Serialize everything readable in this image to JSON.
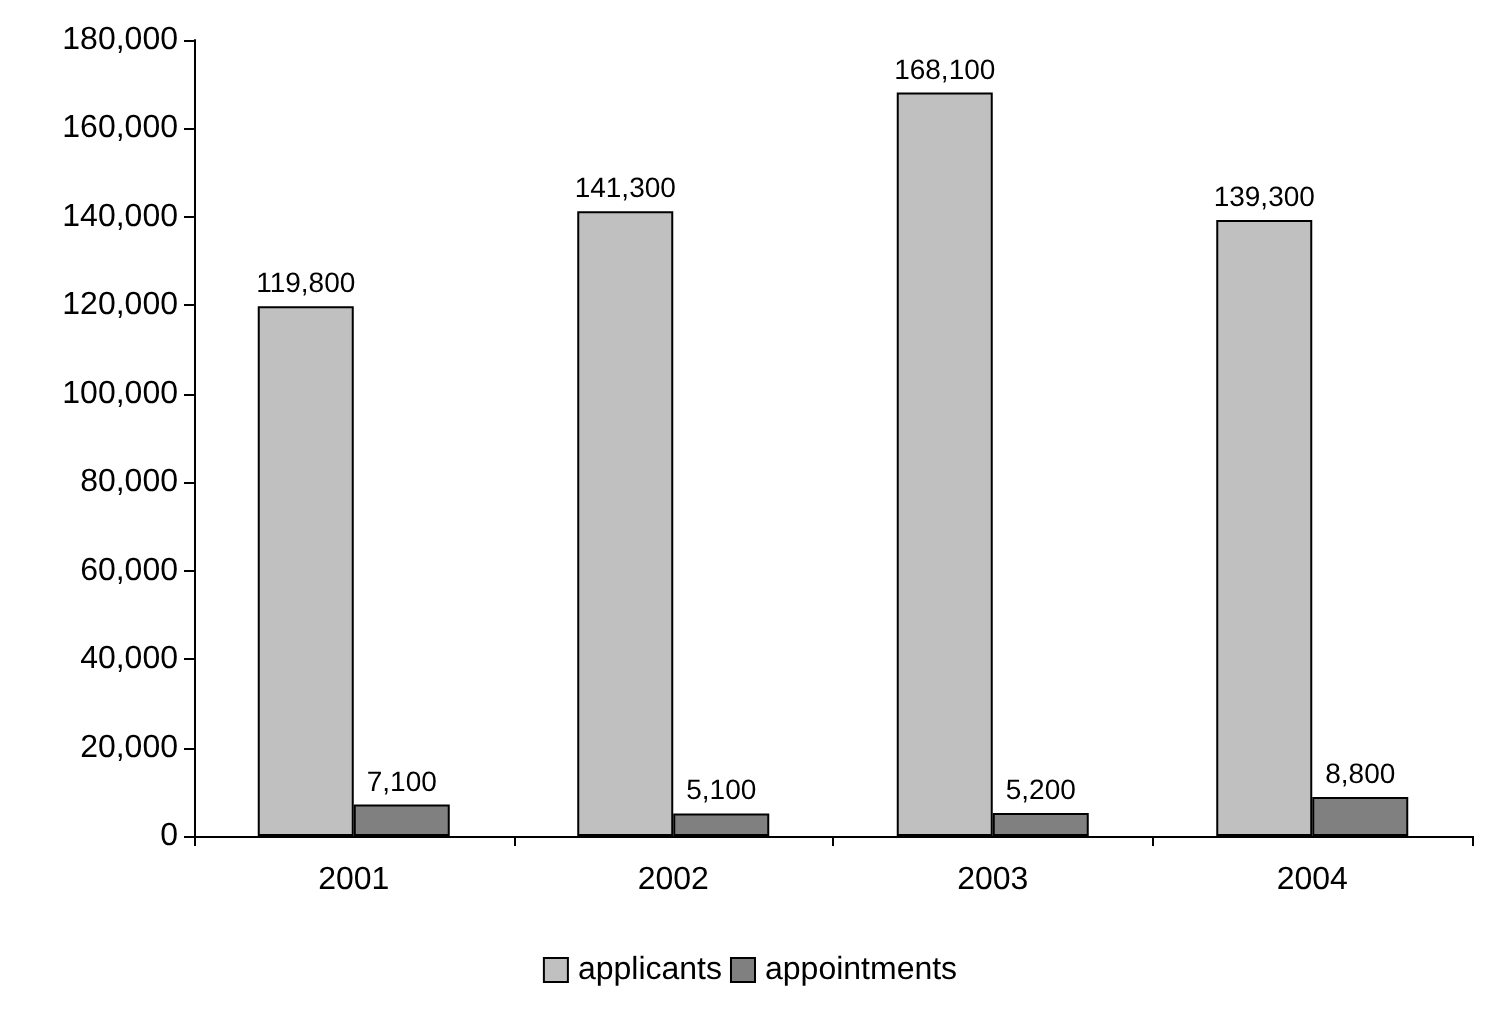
{
  "chart_data": {
    "type": "bar",
    "categories": [
      "2001",
      "2002",
      "2003",
      "2004"
    ],
    "series": [
      {
        "name": "applicants",
        "color": "#c0c0c0",
        "values": [
          119800,
          141300,
          168100,
          139300
        ],
        "value_labels": [
          "119,800",
          "141,300",
          "168,100",
          "139,300"
        ]
      },
      {
        "name": "appointments",
        "color": "#808080",
        "values": [
          7100,
          5100,
          5200,
          8800
        ],
        "value_labels": [
          "7,100",
          "5,100",
          "5,200",
          "8,800"
        ]
      }
    ],
    "ylim": [
      0,
      180000
    ],
    "yticks": [
      0,
      {
        "value": 20000,
        "label": "20,000"
      },
      {
        "value": 40000,
        "label": "40,000"
      },
      {
        "value": 60000,
        "label": "60,000"
      },
      {
        "value": 80000,
        "label": "80,000"
      },
      {
        "value": 100000,
        "label": "100,000"
      },
      {
        "value": 120000,
        "label": "120,000"
      },
      {
        "value": 140000,
        "label": "140,000"
      },
      {
        "value": 160000,
        "label": "160,000"
      },
      {
        "value": 180000,
        "label": "180,000"
      }
    ],
    "legend": "bottom",
    "grid": false
  }
}
